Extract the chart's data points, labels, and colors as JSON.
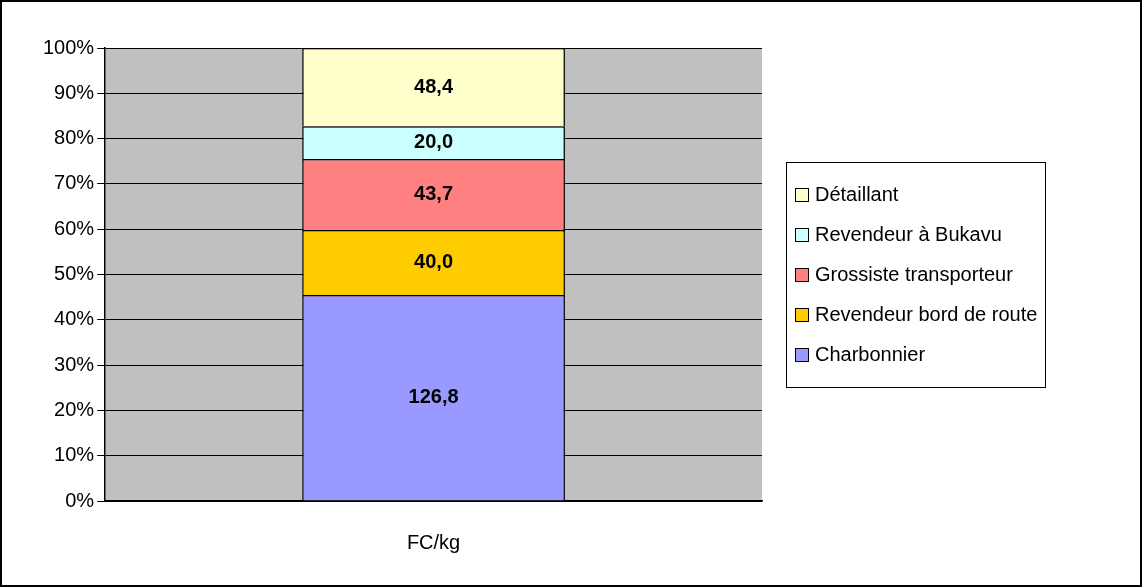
{
  "chart_data": {
    "type": "bar",
    "stacked": true,
    "categories": [
      "FC/kg"
    ],
    "series": [
      {
        "name": "Charbonnier",
        "color": "#9999ff",
        "values": [
          45.5
        ]
      },
      {
        "name": "Revendeur bord de route",
        "color": "#ffcc00",
        "values": [
          14.3
        ]
      },
      {
        "name": "Grossiste transporteur",
        "color": "#ff8080",
        "values": [
          15.7
        ]
      },
      {
        "name": "Revendeur à Bukavu",
        "color": "#ccffff",
        "values": [
          7.2
        ]
      },
      {
        "name": "Détaillant",
        "color": "#ffffcc",
        "values": [
          17.3
        ]
      }
    ],
    "annotations": [
      "126,8",
      "40,0",
      "43,7",
      "20,0",
      "48,4"
    ],
    "ylim": [
      0,
      100
    ],
    "yticks": [
      {
        "value": 0,
        "label": "0%"
      },
      {
        "value": 10,
        "label": "10%"
      },
      {
        "value": 20,
        "label": "20%"
      },
      {
        "value": 30,
        "label": "30%"
      },
      {
        "value": 40,
        "label": "40%"
      },
      {
        "value": 50,
        "label": "50%"
      },
      {
        "value": 60,
        "label": "60%"
      },
      {
        "value": 70,
        "label": "70%"
      },
      {
        "value": 80,
        "label": "80%"
      },
      {
        "value": 90,
        "label": "90%"
      },
      {
        "value": 100,
        "label": "100%"
      }
    ],
    "grid": "y",
    "legend": "right"
  }
}
